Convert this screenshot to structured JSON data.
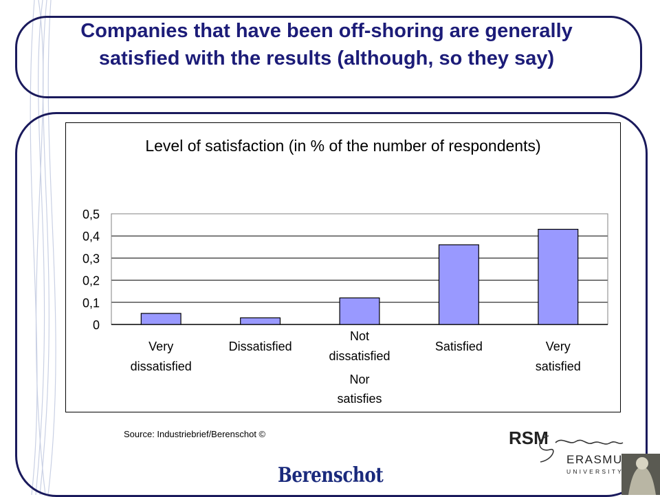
{
  "slide": {
    "title": "Companies that have been off-shoring are generally satisfied with the results (although, so they say)",
    "source": "Source: Industriebrief/Berenschot ©",
    "footer_logo_text": "Berenschot",
    "university_logo": {
      "acronym": "RSM",
      "name": "ERASMUS",
      "subname": "UNIVERSITY",
      "signature": "Erasmus"
    }
  },
  "colors": {
    "bar_fill": "#9999ff",
    "frame": "#1a1a5c",
    "title_text": "#1c1c78",
    "logo_text": "#1a2a7c"
  },
  "chart_data": {
    "type": "bar",
    "title": "Level of satisfaction (in % of the number of respondents)",
    "categories": [
      "Very dissatisfied",
      "Dissatisfied",
      "Not dissatisfied Nor satisfies",
      "Satisfied",
      "Very satisfied"
    ],
    "values": [
      0.05,
      0.03,
      0.12,
      0.36,
      0.43
    ],
    "y_ticks": [
      "0",
      "0,1",
      "0,2",
      "0,3",
      "0,4",
      "0,5"
    ],
    "ylim": [
      0,
      0.5
    ],
    "grid": true,
    "legend": false,
    "xlabel": "",
    "ylabel": ""
  }
}
